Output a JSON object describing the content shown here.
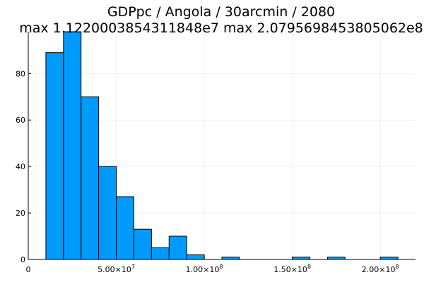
{
  "chart_data": {
    "type": "bar",
    "title_line1": "GDPpc / Angola / 30arcmin / 2080",
    "title_line2": "max 1.1220003854311848e7  max 2.0795698453805062e8",
    "bin_width": 10000000,
    "bins": [
      {
        "x0": 10000000,
        "count": 89
      },
      {
        "x0": 20000000,
        "count": 98
      },
      {
        "x0": 30000000,
        "count": 70
      },
      {
        "x0": 40000000,
        "count": 40
      },
      {
        "x0": 50000000,
        "count": 27
      },
      {
        "x0": 60000000,
        "count": 13
      },
      {
        "x0": 70000000,
        "count": 5
      },
      {
        "x0": 80000000,
        "count": 10
      },
      {
        "x0": 90000000,
        "count": 2
      },
      {
        "x0": 110000000,
        "count": 1
      },
      {
        "x0": 150000000,
        "count": 1
      },
      {
        "x0": 170000000,
        "count": 1
      },
      {
        "x0": 200000000,
        "count": 1
      }
    ],
    "xlim": [
      0,
      220000000
    ],
    "ylim": [
      0,
      98
    ],
    "x_ticks": [
      {
        "value": 0,
        "mantissa": "0",
        "exp": ""
      },
      {
        "value": 50000000,
        "mantissa": "5.00×10",
        "exp": "7"
      },
      {
        "value": 100000000,
        "mantissa": "1.00×10",
        "exp": "8"
      },
      {
        "value": 150000000,
        "mantissa": "1.50×10",
        "exp": "8"
      },
      {
        "value": 200000000,
        "mantissa": "2.00×10",
        "exp": "8"
      }
    ],
    "y_ticks": [
      0,
      20,
      40,
      60,
      80
    ],
    "bar_color": "#009AFA",
    "bar_stroke": "#000000",
    "grid": true,
    "legend": false
  }
}
